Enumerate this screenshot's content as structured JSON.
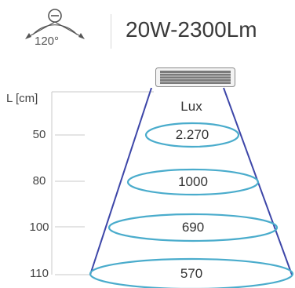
{
  "product": {
    "spec": "20W-2300Lm",
    "beam_angle": "120°"
  },
  "diagram": {
    "distance_unit": "L [cm]",
    "illuminance_unit": "Lux",
    "levels": [
      {
        "distance": "50",
        "lux": "2.270"
      },
      {
        "distance": "80",
        "lux": "1000"
      },
      {
        "distance": "100",
        "lux": "690"
      },
      {
        "distance": "110",
        "lux": "570"
      }
    ]
  },
  "colors": {
    "cone_edge": "#3d46a8",
    "ring": "#4aaccc",
    "axis": "#c8c8c8",
    "text": "#333333"
  },
  "icons": [
    "beam-angle-icon",
    "lamp-icon"
  ]
}
